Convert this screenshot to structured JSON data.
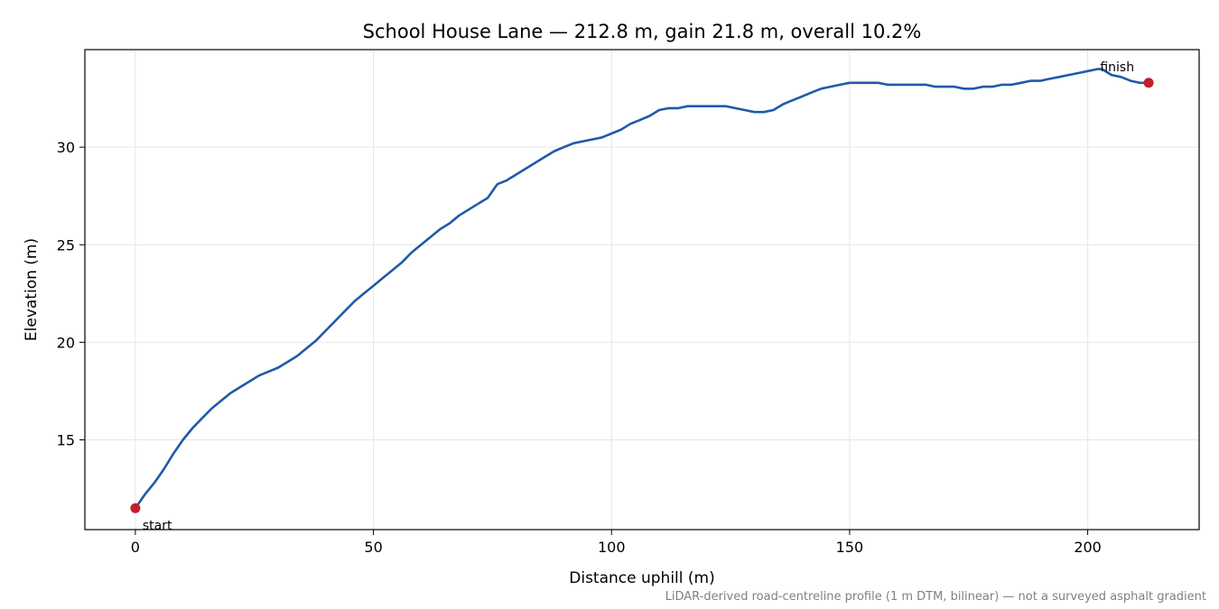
{
  "chart_data": {
    "type": "line",
    "title": "School House Lane — 212.8 m, gain 21.8 m, overall 10.2%",
    "xlabel": "Distance uphill (m)",
    "ylabel": "Elevation (m)",
    "xlim": [
      -10.6,
      223.4
    ],
    "ylim": [
      10.4,
      35
    ],
    "xticks": [
      0,
      50,
      100,
      150,
      200
    ],
    "yticks": [
      15,
      20,
      25,
      30
    ],
    "grid": true,
    "footnote": "LiDAR-derived road-centreline profile (1 m DTM, bilinear) — not a surveyed asphalt gradient",
    "colors": {
      "line": "#1f5aa8",
      "marker": "#c41e2a",
      "grid": "#e6e6e6"
    },
    "series": [
      {
        "x": [
          0,
          2,
          4,
          6,
          8,
          10,
          12,
          14,
          16,
          18,
          20,
          22,
          24,
          26,
          28,
          30,
          32,
          34,
          36,
          38,
          40,
          42,
          44,
          46,
          48,
          50,
          52,
          54,
          56,
          58,
          60,
          62,
          64,
          66,
          68,
          70,
          72,
          74,
          76,
          77,
          78,
          80,
          82,
          84,
          86,
          88,
          90,
          92,
          94,
          96,
          98,
          100,
          102,
          104,
          106,
          108,
          110,
          112,
          114,
          116,
          118,
          120,
          122,
          124,
          126,
          128,
          130,
          132,
          134,
          136,
          138,
          140,
          142,
          144,
          146,
          148,
          150,
          152,
          154,
          156,
          158,
          160,
          162,
          164,
          166,
          168,
          170,
          172,
          174,
          176,
          178,
          180,
          182,
          184,
          186,
          188,
          190,
          192,
          194,
          196,
          198,
          200,
          202,
          203,
          205,
          207,
          209,
          211,
          212.8
        ],
        "y": [
          11.5,
          12.2,
          12.8,
          13.5,
          14.3,
          15.0,
          15.6,
          16.1,
          16.6,
          17.0,
          17.4,
          17.7,
          18.0,
          18.3,
          18.5,
          18.7,
          19.0,
          19.3,
          19.7,
          20.1,
          20.6,
          21.1,
          21.6,
          22.1,
          22.5,
          22.9,
          23.3,
          23.7,
          24.1,
          24.6,
          25.0,
          25.4,
          25.8,
          26.1,
          26.5,
          26.8,
          27.1,
          27.4,
          28.1,
          28.2,
          28.3,
          28.6,
          28.9,
          29.2,
          29.5,
          29.8,
          30.0,
          30.2,
          30.3,
          30.4,
          30.5,
          30.7,
          30.9,
          31.2,
          31.4,
          31.6,
          31.9,
          32.0,
          32.0,
          32.1,
          32.1,
          32.1,
          32.1,
          32.1,
          32.0,
          31.9,
          31.8,
          31.8,
          31.9,
          32.2,
          32.4,
          32.6,
          32.8,
          33.0,
          33.1,
          33.2,
          33.3,
          33.3,
          33.3,
          33.3,
          33.2,
          33.2,
          33.2,
          33.2,
          33.2,
          33.1,
          33.1,
          33.1,
          33.0,
          33.0,
          33.1,
          33.1,
          33.2,
          33.2,
          33.3,
          33.4,
          33.4,
          33.5,
          33.6,
          33.7,
          33.8,
          33.9,
          34.0,
          34.0,
          33.7,
          33.6,
          33.4,
          33.3,
          33.3
        ]
      }
    ],
    "annotations": [
      {
        "label": "start",
        "x": 0,
        "y": 11.5
      },
      {
        "label": "finish",
        "x": 212.8,
        "y": 33.3
      }
    ]
  }
}
